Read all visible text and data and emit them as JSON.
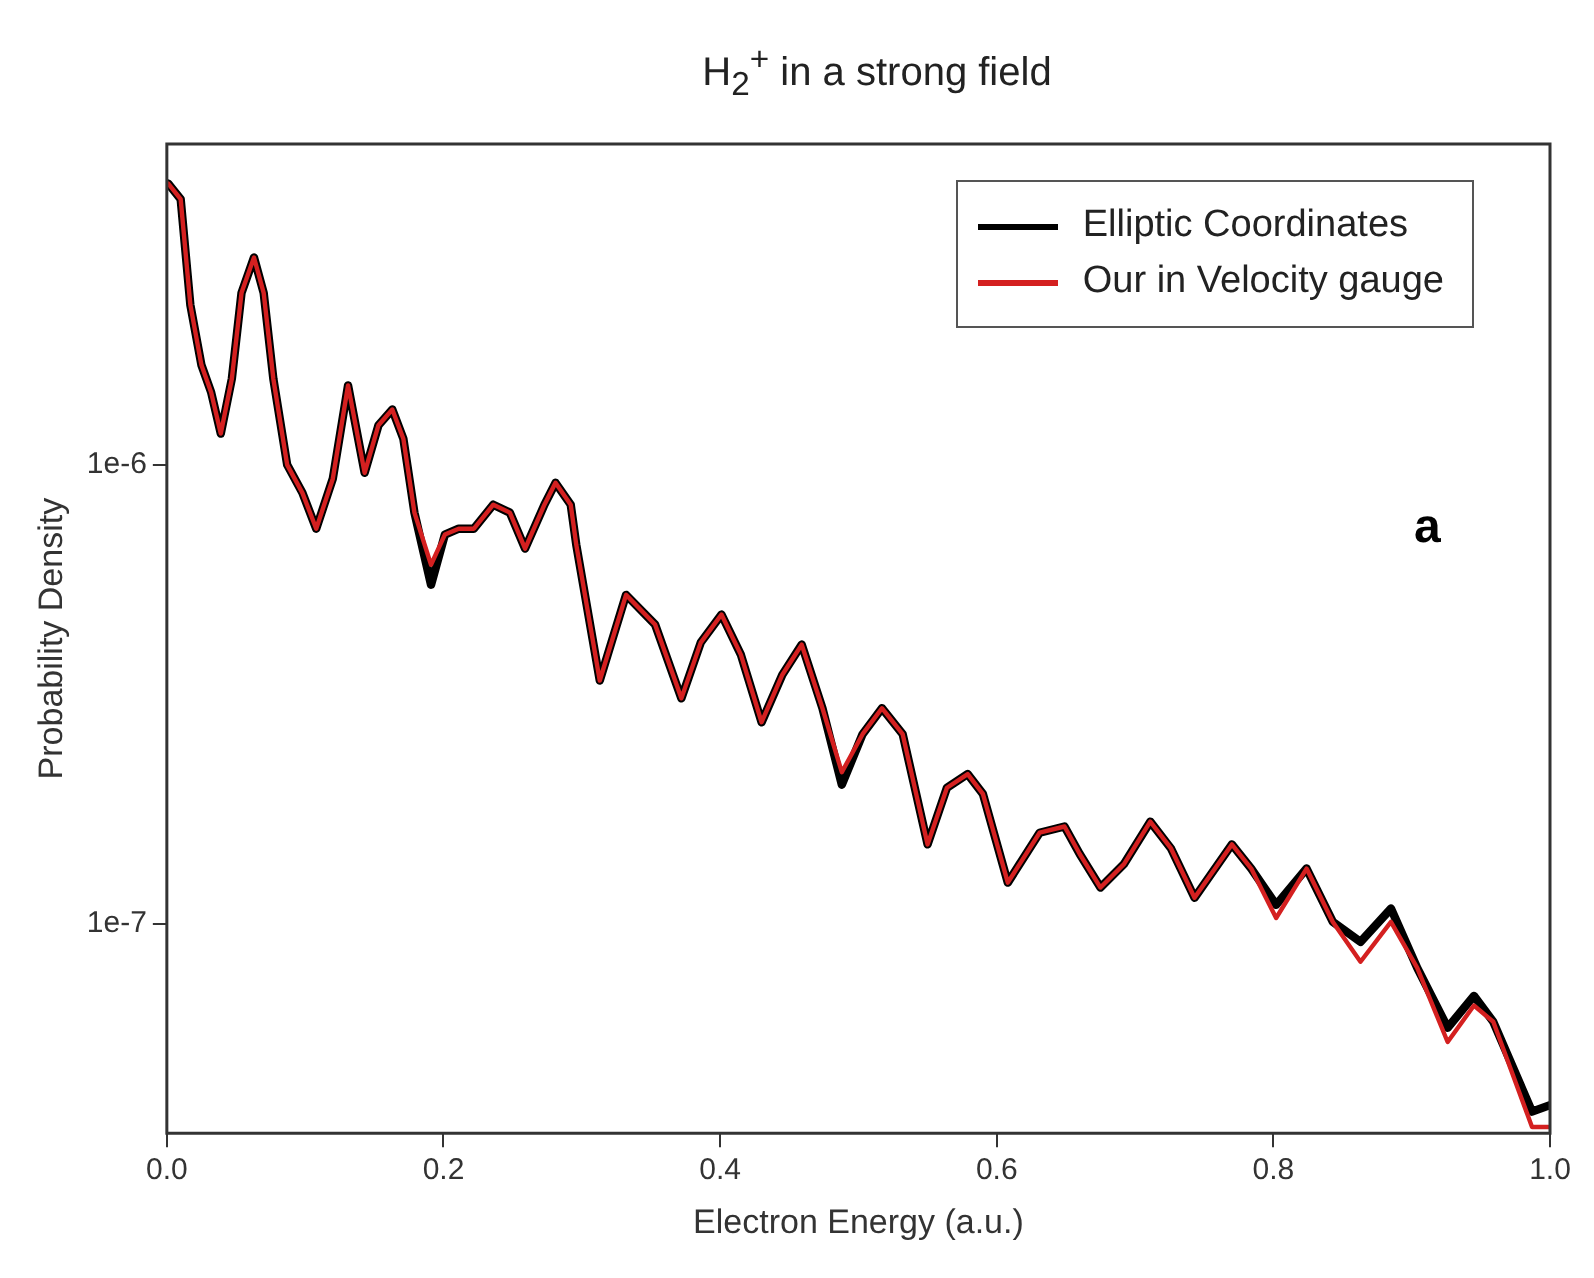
{
  "chart_data": {
    "type": "line",
    "title": "H$_{2}$$^{+}$ in a strong field",
    "xlabel": "Electron Energy (a.u.)",
    "ylabel": "Probability Density",
    "log": "y",
    "grid": false,
    "legend": "top right",
    "marker": "none",
    "line_style": "solid",
    "xlim": [
      0,
      1
    ],
    "ylim": [
      3.5e-08,
      5e-06
    ],
    "xticks": [
      {
        "value": 0,
        "label": "0.0"
      },
      {
        "value": 0.2,
        "label": "0.2"
      },
      {
        "value": 0.4,
        "label": "0.4"
      },
      {
        "value": 0.6,
        "label": "0.6"
      },
      {
        "value": 0.8,
        "label": "0.8"
      },
      {
        "value": 1,
        "label": "1.0"
      }
    ],
    "yticks": [
      {
        "value": 1e-07,
        "label": "1e-7"
      },
      {
        "value": 1e-06,
        "label": "1e-6"
      }
    ],
    "x": [
      0.001,
      0.01,
      0.017,
      0.025,
      0.032,
      0.039,
      0.047,
      0.054,
      0.063,
      0.07,
      0.077,
      0.087,
      0.098,
      0.108,
      0.12,
      0.131,
      0.143,
      0.153,
      0.163,
      0.171,
      0.179,
      0.191,
      0.201,
      0.211,
      0.222,
      0.236,
      0.248,
      0.259,
      0.273,
      0.281,
      0.292,
      0.296,
      0.313,
      0.332,
      0.353,
      0.372,
      0.386,
      0.401,
      0.415,
      0.43,
      0.445,
      0.459,
      0.474,
      0.488,
      0.503,
      0.517,
      0.532,
      0.55,
      0.564,
      0.579,
      0.59,
      0.608,
      0.631,
      0.649,
      0.66,
      0.675,
      0.692,
      0.711,
      0.726,
      0.743,
      0.77,
      0.784,
      0.802,
      0.824,
      0.843,
      0.863,
      0.885,
      0.904,
      0.926,
      0.945,
      0.959,
      0.987,
      0.999
    ],
    "series": [
      {
        "name": "Elliptic Coordinates",
        "color": "#000000",
        "values": [
          4.1e-06,
          3.79e-06,
          2.23e-06,
          1.65e-06,
          1.44e-06,
          1.17e-06,
          1.54e-06,
          2.37e-06,
          2.83e-06,
          2.37e-06,
          1.54e-06,
          1e-06,
          8.69e-07,
          7.26e-07,
          9.33e-07,
          1.49e-06,
          9.61e-07,
          1.22e-06,
          1.32e-06,
          1.14e-06,
          7.87e-07,
          5.48e-07,
          7.05e-07,
          7.26e-07,
          7.26e-07,
          8.19e-07,
          7.87e-07,
          6.57e-07,
          8.19e-07,
          9.14e-07,
          8.19e-07,
          6.7e-07,
          3.39e-07,
          5.21e-07,
          4.49e-07,
          3.1e-07,
          4.1e-07,
          4.72e-07,
          3.86e-07,
          2.75e-07,
          3.49e-07,
          4.06e-07,
          2.95e-07,
          2.01e-07,
          2.59e-07,
          2.95e-07,
          2.59e-07,
          1.49e-07,
          1.98e-07,
          2.12e-07,
          1.92e-07,
          1.23e-07,
          1.58e-07,
          1.63e-07,
          1.42e-07,
          1.2e-07,
          1.35e-07,
          1.67e-07,
          1.46e-07,
          1.14e-07,
          1.49e-07,
          1.32e-07,
          1.1e-07,
          1.32e-07,
          1.01e-07,
          9.14e-08,
          1.08e-07,
          8.02e-08,
          5.94e-08,
          6.97e-08,
          6.12e-08,
          3.9e-08,
          4.02e-08
        ]
      },
      {
        "name": "Our in Velocity gauge",
        "color": "#d42020",
        "values": [
          4.1e-06,
          3.79e-06,
          2.23e-06,
          1.65e-06,
          1.44e-06,
          1.17e-06,
          1.54e-06,
          2.37e-06,
          2.83e-06,
          2.37e-06,
          1.54e-06,
          1e-06,
          8.69e-07,
          7.26e-07,
          9.33e-07,
          1.49e-06,
          9.61e-07,
          1.22e-06,
          1.32e-06,
          1.14e-06,
          7.87e-07,
          6.06e-07,
          7.05e-07,
          7.26e-07,
          7.26e-07,
          8.19e-07,
          7.87e-07,
          6.57e-07,
          8.19e-07,
          9.14e-07,
          8.19e-07,
          6.7e-07,
          3.39e-07,
          5.21e-07,
          4.49e-07,
          3.1e-07,
          4.1e-07,
          4.72e-07,
          3.86e-07,
          2.75e-07,
          3.49e-07,
          4.06e-07,
          2.95e-07,
          2.14e-07,
          2.59e-07,
          2.95e-07,
          2.59e-07,
          1.49e-07,
          1.98e-07,
          2.12e-07,
          1.92e-07,
          1.23e-07,
          1.58e-07,
          1.63e-07,
          1.42e-07,
          1.2e-07,
          1.35e-07,
          1.67e-07,
          1.46e-07,
          1.14e-07,
          1.49e-07,
          1.32e-07,
          1.03e-07,
          1.32e-07,
          1.01e-07,
          8.27e-08,
          1.01e-07,
          8.02e-08,
          5.53e-08,
          6.64e-08,
          6.12e-08,
          3.61e-08,
          3.61e-08
        ]
      }
    ],
    "annotations": [
      "a"
    ]
  }
}
